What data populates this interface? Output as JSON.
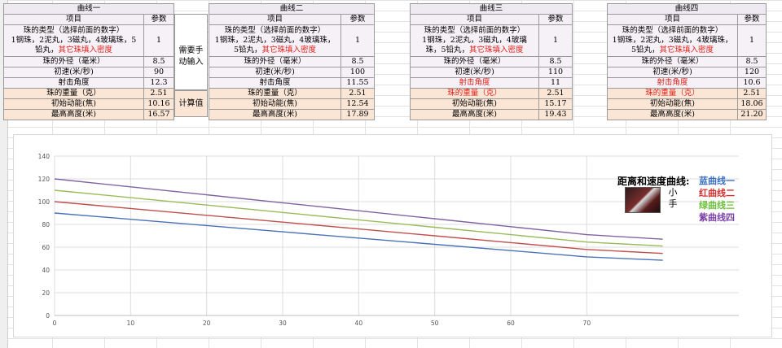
{
  "curves": [
    {
      "title": "曲线一",
      "col_item": "项目",
      "col_param": "参数",
      "type_label_1": "珠的类型（选择前面的数字）",
      "type_label_2": "1钢珠，2泥丸，3磁丸，4玻璃珠，5",
      "type_label_3": "铅丸，",
      "type_label_red": "其它珠填入密度",
      "type_value": "1",
      "diameter_label": "珠的外径（毫米）",
      "diameter_value": "8.5",
      "speed_label": "初速(米/秒)",
      "speed_value": "90",
      "angle_label": "射击角度",
      "angle_value": "12.3",
      "mass_label": "珠的重量（克）",
      "mass_value": "2.51",
      "energy_label": "初始动能(焦)",
      "energy_value": "10.16",
      "height_label": "最高高度(米)",
      "height_value": "16.57"
    },
    {
      "title": "曲线二",
      "col_item": "项目",
      "col_param": "参数",
      "type_label_1": "珠的类型（选择前面的数字）",
      "type_label_2": "1钢珠，2泥丸，3磁丸，4玻璃珠，",
      "type_label_3": "5铅丸，",
      "type_label_red": "其它珠填入密度",
      "type_value": "1",
      "diameter_label": "珠的外径（毫米）",
      "diameter_value": "8.5",
      "speed_label": "初速(米/秒)",
      "speed_value": "100",
      "angle_label": "射击角度",
      "angle_value": "11.55",
      "mass_label": "珠的重量（克）",
      "mass_value": "2.51",
      "energy_label": "初始动能(焦)",
      "energy_value": "12.54",
      "height_label": "最高高度(米)",
      "height_value": "17.89"
    },
    {
      "title": "曲线三",
      "col_item": "项目",
      "col_param": "参数",
      "type_label_1": "珠的类型（选择前面的数字）",
      "type_label_2": "1钢珠，2泥丸，3磁丸，4玻璃",
      "type_label_3": "珠，5铅丸，",
      "type_label_red": "其它珠填入密度",
      "type_value": "1",
      "diameter_label": "珠的外径（毫米）",
      "diameter_value": "8.5",
      "speed_label": "初速(米/秒)",
      "speed_value": "110",
      "angle_label": "射击角度",
      "angle_value": "11",
      "mass_label": "珠的重量（克）",
      "mass_value": "2.51",
      "energy_label": "初始动能(焦)",
      "energy_value": "15.17",
      "height_label": "最高高度(米)",
      "height_value": "19.43"
    },
    {
      "title": "曲线四",
      "col_item": "项目",
      "col_param": "参数",
      "type_label_1": "珠的类型（选择前面的数字）",
      "type_label_2": "1钢珠，2泥丸，3磁丸，4玻璃珠，",
      "type_label_3": "5铅丸，",
      "type_label_red": "其它珠填入密度",
      "type_value": "1",
      "diameter_label": "珠的外径（毫米）",
      "diameter_value": "8.5",
      "speed_label": "初速(米/秒)",
      "speed_value": "120",
      "angle_label": "射击角度",
      "angle_value": "10.6",
      "mass_label": "珠的重量（克）",
      "mass_value": "2.51",
      "energy_label": "初始动能(焦)",
      "energy_value": "18.06",
      "height_label": "最高高度(米)",
      "height_value": "21.20"
    }
  ],
  "side_labels": {
    "manual_input": "需要手动输入",
    "computed": "计算值"
  },
  "legend": {
    "title": "距离和速度曲线:",
    "items": [
      {
        "text": "蓝曲线一",
        "color": "#3a6fc4"
      },
      {
        "text": "红曲线二",
        "color": "#d0312d"
      },
      {
        "text": "绿曲线三",
        "color": "#6cbf3a"
      },
      {
        "text": "紫曲线四",
        "color": "#7b3fa8"
      }
    ],
    "avatar_name": "小手"
  },
  "colors": {
    "red_text": "#e0201b",
    "input_bg": "#f6f1f6",
    "computed_bg": "#fbe6d6"
  },
  "chart_data": {
    "type": "line",
    "x": [
      0,
      10,
      20,
      30,
      40,
      50,
      60,
      70,
      80
    ],
    "series": [
      {
        "color": "#4a72b8",
        "values": [
          90,
          84.5,
          79,
          73.5,
          68,
          62.5,
          57,
          51.5,
          48.5
        ]
      },
      {
        "color": "#c0504d",
        "values": [
          100,
          94,
          88,
          82,
          76,
          70,
          64,
          58,
          54.5
        ]
      },
      {
        "color": "#9bbb59",
        "values": [
          110,
          103.5,
          97,
          90.5,
          84,
          77.5,
          71,
          64.5,
          61
        ]
      },
      {
        "color": "#8064a2",
        "values": [
          120,
          113,
          106,
          99,
          92,
          85,
          78,
          71,
          67
        ]
      }
    ],
    "xlim": [
      0,
      90
    ],
    "ylim": [
      0,
      140
    ],
    "xticks": [
      0,
      10,
      20,
      30,
      40,
      50,
      60,
      70
    ],
    "yticks": [
      0,
      20,
      40,
      60,
      80,
      100,
      120,
      140
    ],
    "grid": true
  }
}
